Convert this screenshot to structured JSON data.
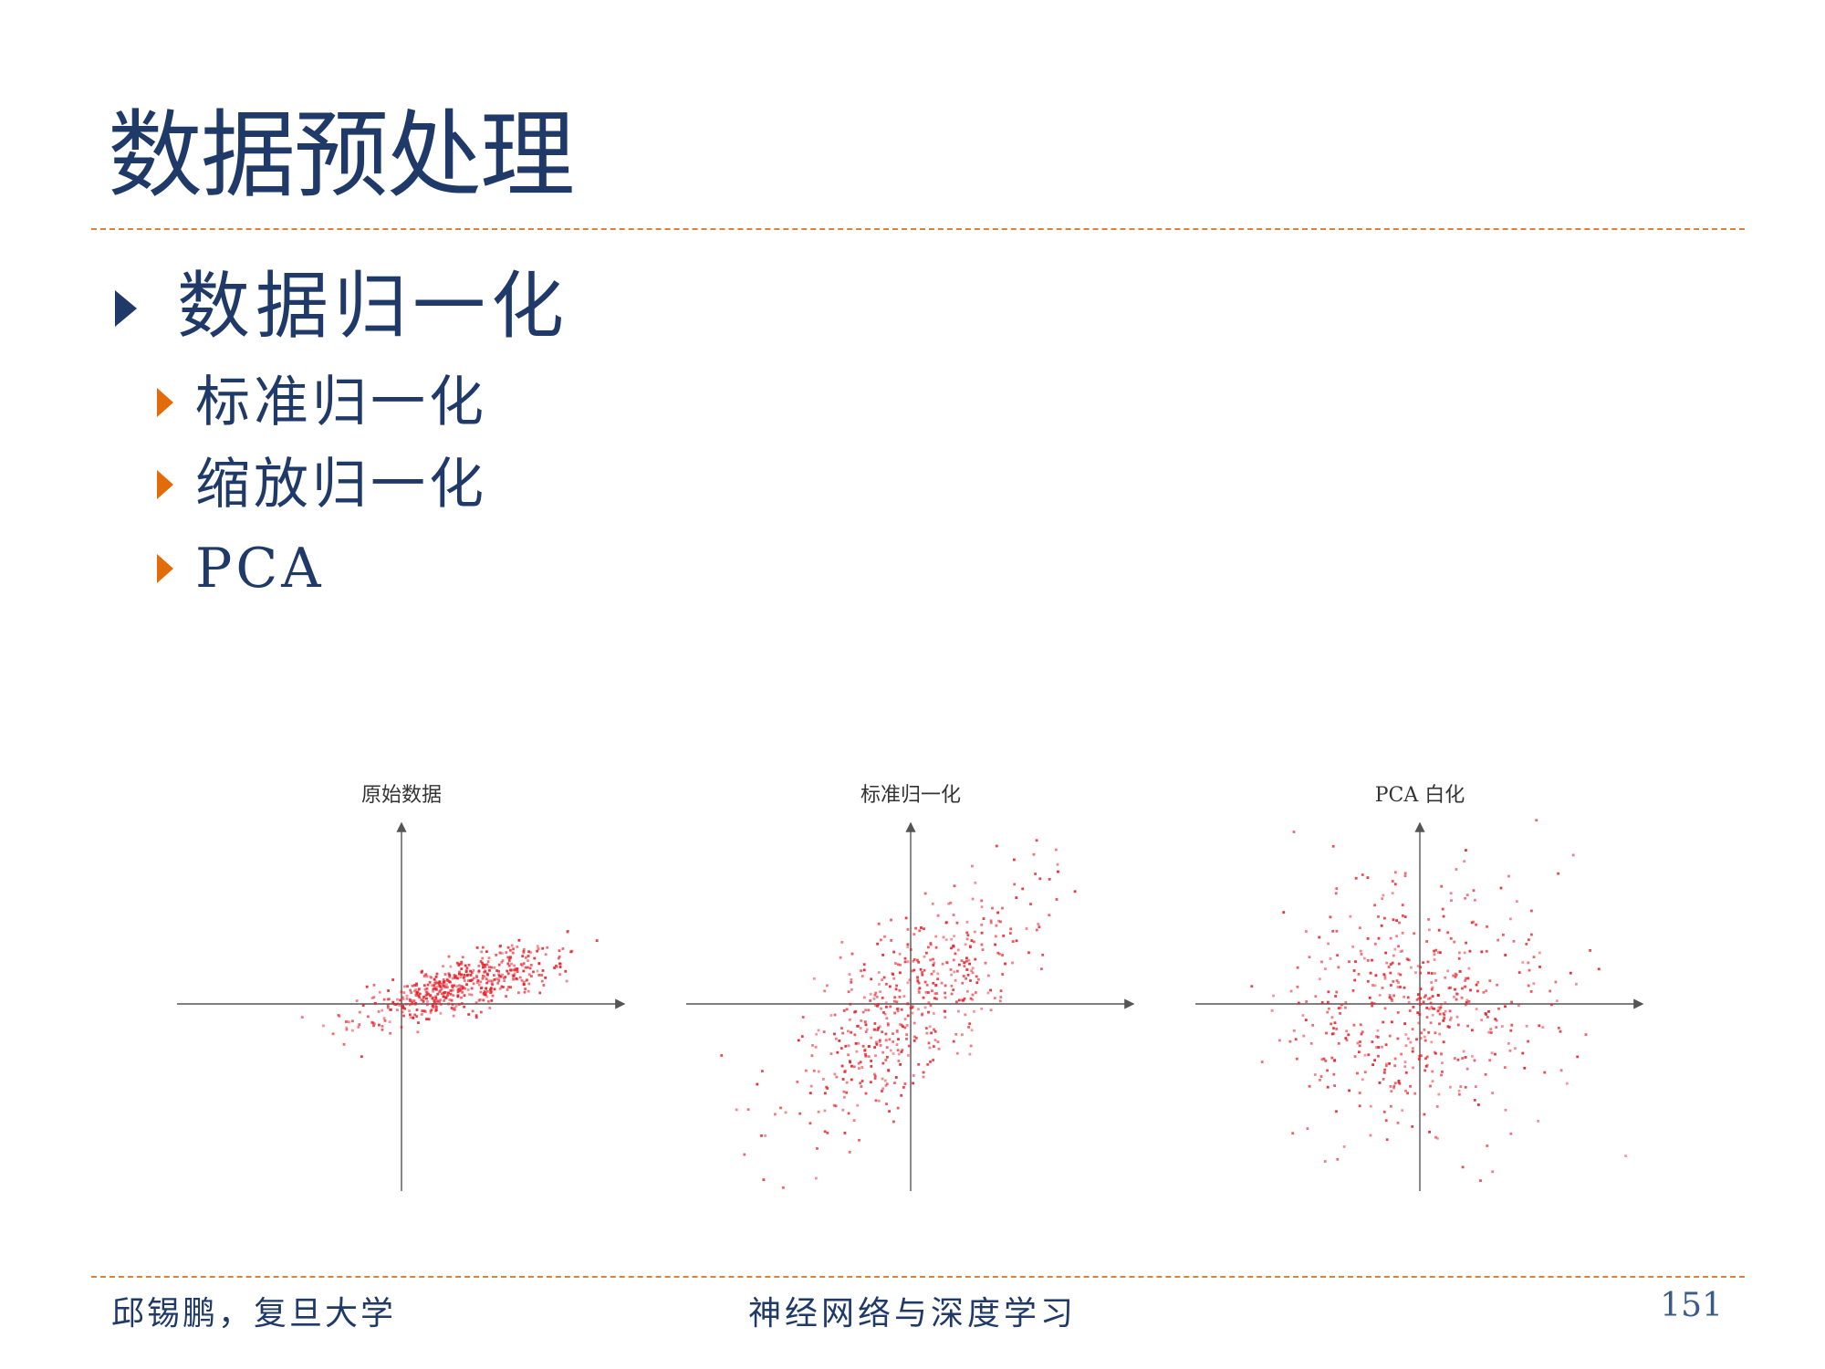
{
  "slide": {
    "title": "数据预处理",
    "bullets": [
      {
        "level": 1,
        "text": "数据归一化"
      },
      {
        "level": 2,
        "text": "标准归一化"
      },
      {
        "level": 2,
        "text": "缩放归一化"
      },
      {
        "level": 2,
        "text": "PCA"
      }
    ]
  },
  "footer": {
    "author": "邱锡鹏，复旦大学",
    "course": "神经网络与深度学习",
    "page_number": "151"
  },
  "colors": {
    "title": "#1f3a68",
    "accent": "#e36c0a",
    "rule": "#d9823a",
    "points": "#e8212b",
    "axes": "#555555"
  },
  "chart_data": [
    {
      "type": "scatter",
      "title": "原始数据",
      "distribution": {
        "n": 520,
        "mean": [
          0.9,
          0.25
        ],
        "std": [
          0.78,
          0.32
        ],
        "corr": 0.75
      },
      "xlim": [
        -3.5,
        3.5
      ],
      "ylim": [
        -2.9,
        2.9
      ],
      "grid": false
    },
    {
      "type": "scatter",
      "title": "标准归一化",
      "distribution": {
        "n": 520,
        "mean": [
          0.0,
          0.0
        ],
        "std": [
          1.0,
          1.0
        ],
        "corr": 0.75
      },
      "xlim": [
        -3.5,
        3.5
      ],
      "ylim": [
        -2.9,
        2.9
      ],
      "grid": false
    },
    {
      "type": "scatter",
      "title": "PCA 白化",
      "distribution": {
        "n": 520,
        "mean": [
          0.0,
          0.0
        ],
        "std": [
          1.0,
          1.0
        ],
        "corr": 0.0
      },
      "xlim": [
        -3.5,
        3.5
      ],
      "ylim": [
        -2.9,
        2.9
      ],
      "grid": false
    }
  ]
}
